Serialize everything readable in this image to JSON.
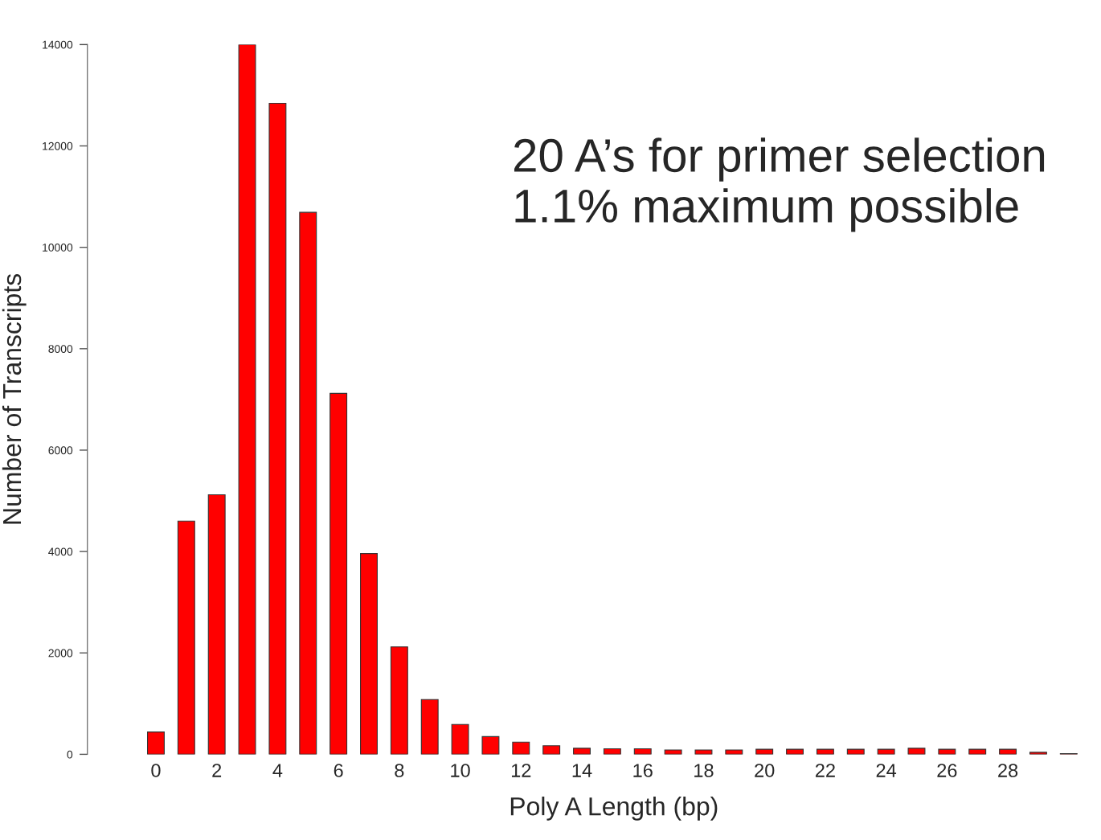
{
  "chart_data": {
    "type": "bar",
    "xlabel": "Poly A Length (bp)",
    "ylabel": "Number of Transcripts",
    "categories": [
      "0",
      null,
      "2",
      null,
      "4",
      null,
      "6",
      null,
      "8",
      null,
      "10",
      null,
      "12",
      null,
      "14",
      null,
      "16",
      null,
      "18",
      null,
      "20",
      null,
      "22",
      null,
      "24",
      null,
      "26",
      null,
      "28",
      null,
      null
    ],
    "values": [
      440,
      4600,
      5120,
      14000,
      12840,
      10690,
      7120,
      3960,
      2120,
      1080,
      590,
      350,
      240,
      170,
      120,
      110,
      110,
      85,
      85,
      85,
      100,
      100,
      100,
      100,
      100,
      120,
      100,
      100,
      100,
      40,
      15
    ],
    "color": "#ff0000",
    "ylim": [
      0,
      14000
    ],
    "yticks": [
      0,
      2000,
      4000,
      6000,
      8000,
      10000,
      12000,
      14000
    ],
    "annotations": [
      "20 A’s for primer selection\n1.1% maximum possible"
    ],
    "grid": false
  }
}
